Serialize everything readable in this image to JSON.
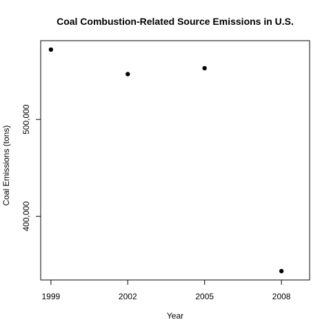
{
  "chart_data": {
    "type": "scatter",
    "title": "Coal Combustion-Related Source Emissions in U.S.",
    "xlabel": "Year",
    "ylabel": "Coal Emissions (tons)",
    "x": [
      1999,
      2002,
      2005,
      2008
    ],
    "series": [
      {
        "values": [
          572126,
          546789,
          552881,
          343432
        ]
      }
    ],
    "x_ticks": [
      1999,
      2002,
      2005,
      2008
    ],
    "x_tick_labels": [
      "1999",
      "2002",
      "2005",
      "2008"
    ],
    "y_ticks": [
      400000,
      500000
    ],
    "y_tick_labels": [
      "400,000",
      "500,000"
    ],
    "xlim": [
      1998.6,
      2009.1
    ],
    "ylim": [
      334300,
      581300
    ],
    "grid": false,
    "legend": "none",
    "point_color": "#000000"
  }
}
